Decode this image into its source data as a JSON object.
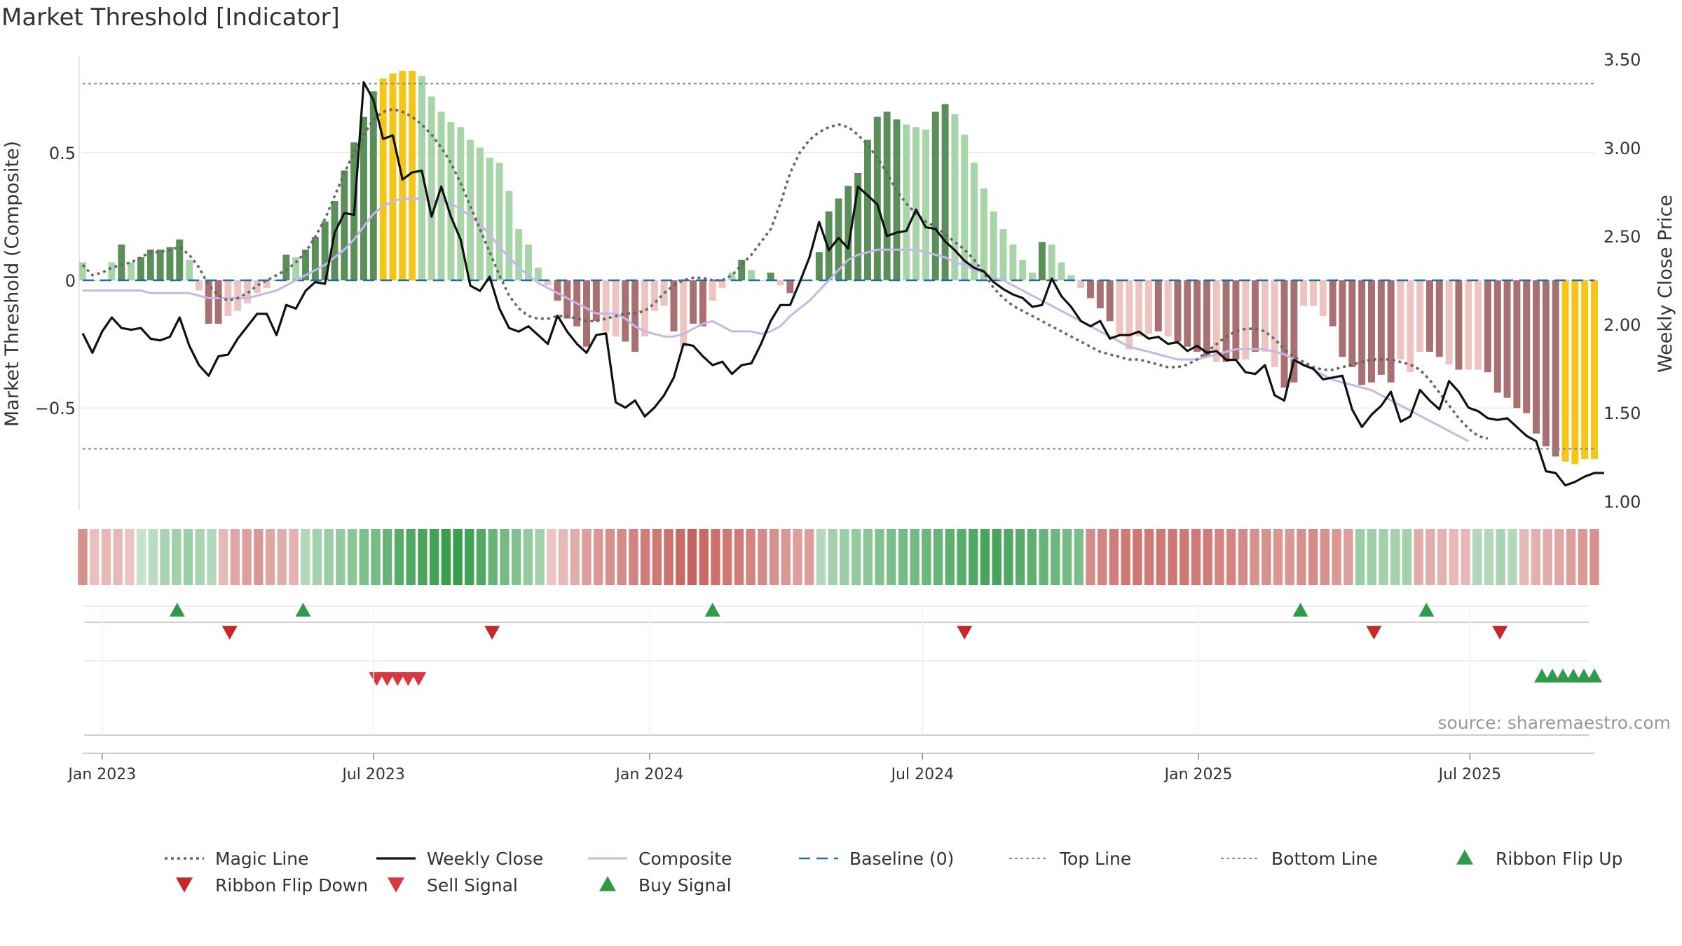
{
  "title": "Market Threshold [Indicator]",
  "source": "source: sharemaestro.com",
  "colors": {
    "bar_pos_strong": "#5a8f5a",
    "bar_pos_weak": "#a8d5a8",
    "bar_neg_strong": "#a87070",
    "bar_neg_weak": "#eec4c0",
    "bar_extreme": "#f5c518",
    "close": "#111111",
    "composite": "#c4b8e8",
    "magic": "#666666",
    "baseline": "#1f6fa6",
    "threshold": "#888888",
    "buy": "#2e9a4a",
    "sell": "#d8373f",
    "ribbon_green": "#3a9e4f",
    "ribbon_red": "#c0504a"
  },
  "chart_data": {
    "type": "bar",
    "title": "Market Threshold [Indicator]",
    "ylabel_left": "Market Threshold (Composite)",
    "ylabel_right": "Weekly Close Price",
    "ylim_left": [
      -0.9,
      0.9
    ],
    "ylim_right": [
      0.95,
      3.55
    ],
    "yticks_left": [
      {
        "v": 0.5,
        "label": "0.5"
      },
      {
        "v": 0,
        "label": "0"
      },
      {
        "v": -0.5,
        "label": "−0.5"
      }
    ],
    "yticks_right": [
      "1.00",
      "1.50",
      "2.00",
      "2.50",
      "3.00",
      "3.50"
    ],
    "top_line": 0.77,
    "bottom_line": -0.66,
    "baseline": 0,
    "x_start": "2022-12-19",
    "x_end": "2025-09-22",
    "xticks": [
      {
        "date": "2023-01-01",
        "label": "Jan 2023"
      },
      {
        "date": "2023-07-01",
        "label": "Jul 2023"
      },
      {
        "date": "2024-01-01",
        "label": "Jan 2024"
      },
      {
        "date": "2024-07-01",
        "label": "Jul 2024"
      },
      {
        "date": "2025-01-01",
        "label": "Jan 2025"
      },
      {
        "date": "2025-07-01",
        "label": "Jul 2025"
      }
    ],
    "composite_bars": [
      0.07,
      0.0,
      0.0,
      0.07,
      0.14,
      0.07,
      0.09,
      0.12,
      0.12,
      0.13,
      0.16,
      0.08,
      -0.04,
      -0.17,
      -0.17,
      -0.14,
      -0.12,
      -0.09,
      -0.05,
      -0.03,
      0.0,
      0.1,
      0.09,
      0.12,
      0.17,
      0.23,
      0.31,
      0.43,
      0.54,
      0.64,
      0.74,
      0.79,
      0.81,
      0.82,
      0.82,
      0.8,
      0.72,
      0.66,
      0.62,
      0.6,
      0.55,
      0.52,
      0.48,
      0.46,
      0.35,
      0.2,
      0.14,
      0.05,
      -0.02,
      -0.08,
      -0.15,
      -0.18,
      -0.26,
      -0.16,
      -0.2,
      -0.22,
      -0.24,
      -0.28,
      -0.22,
      -0.12,
      -0.1,
      -0.2,
      -0.26,
      -0.17,
      -0.18,
      -0.08,
      -0.03,
      0.03,
      0.08,
      0.04,
      0.0,
      0.03,
      -0.02,
      -0.05,
      0.0,
      0.0,
      0.11,
      0.27,
      0.32,
      0.37,
      0.42,
      0.55,
      0.64,
      0.66,
      0.63,
      0.61,
      0.6,
      0.59,
      0.66,
      0.69,
      0.65,
      0.57,
      0.46,
      0.36,
      0.27,
      0.2,
      0.14,
      0.08,
      0.03,
      0.15,
      0.14,
      0.07,
      0.02,
      -0.03,
      -0.07,
      -0.11,
      -0.16,
      -0.21,
      -0.27,
      -0.22,
      -0.21,
      -0.2,
      -0.22,
      -0.24,
      -0.26,
      -0.28,
      -0.3,
      -0.32,
      -0.32,
      -0.31,
      -0.31,
      -0.28,
      -0.28,
      -0.34,
      -0.42,
      -0.4,
      -0.1,
      -0.1,
      -0.14,
      -0.18,
      -0.3,
      -0.34,
      -0.41,
      -0.4,
      -0.37,
      -0.4,
      -0.31,
      -0.36,
      -0.28,
      -0.28,
      -0.3,
      -0.33,
      -0.35,
      -0.35,
      -0.35,
      -0.36,
      -0.44,
      -0.46,
      -0.5,
      -0.52,
      -0.6,
      -0.65,
      -0.69,
      -0.71,
      -0.72,
      -0.7,
      -0.7
    ],
    "bar_styles": [
      "pw",
      "pw",
      "pw",
      "pw",
      "ps",
      "pw",
      "ps",
      "ps",
      "ps",
      "ps",
      "ps",
      "pw",
      "nw",
      "ns",
      "ns",
      "nw",
      "nw",
      "nw",
      "nw",
      "nw",
      "pw",
      "ps",
      "pw",
      "ps",
      "ps",
      "ps",
      "ps",
      "ps",
      "ps",
      "ps",
      "ps",
      "x",
      "x",
      "x",
      "x",
      "pw",
      "pw",
      "pw",
      "pw",
      "pw",
      "pw",
      "pw",
      "pw",
      "pw",
      "pw",
      "pw",
      "pw",
      "pw",
      "nw",
      "ns",
      "ns",
      "ns",
      "ns",
      "ns",
      "nw",
      "nw",
      "ns",
      "ns",
      "nw",
      "nw",
      "nw",
      "ns",
      "nw",
      "ns",
      "ns",
      "nw",
      "nw",
      "pw",
      "ps",
      "pw",
      "pw",
      "ps",
      "nw",
      "ns",
      "pw",
      "pw",
      "ps",
      "ps",
      "ps",
      "ps",
      "ps",
      "ps",
      "ps",
      "ps",
      "ps",
      "pw",
      "pw",
      "pw",
      "ps",
      "ps",
      "pw",
      "pw",
      "pw",
      "pw",
      "pw",
      "pw",
      "pw",
      "pw",
      "pw",
      "ps",
      "pw",
      "pw",
      "pw",
      "nw",
      "ns",
      "ns",
      "ns",
      "nw",
      "nw",
      "nw",
      "nw",
      "ns",
      "nw",
      "ns",
      "ns",
      "ns",
      "ns",
      "nw",
      "ns",
      "ns",
      "nw",
      "ns",
      "nw",
      "nw",
      "ns",
      "ns",
      "nw",
      "nw",
      "nw",
      "ns",
      "ns",
      "ns",
      "ns",
      "ns",
      "ns",
      "ns",
      "nw",
      "nw",
      "nw",
      "ns",
      "ns",
      "nw",
      "ns",
      "nw",
      "nw",
      "ns",
      "ns",
      "ns",
      "ns",
      "ns",
      "ns",
      "ns",
      "ns",
      "x",
      "x",
      "x",
      "x",
      "x",
      "x"
    ],
    "weekly_close": [
      1.95,
      1.84,
      1.96,
      2.04,
      1.98,
      1.97,
      1.98,
      1.92,
      1.91,
      1.93,
      2.04,
      1.88,
      1.77,
      1.71,
      1.82,
      1.83,
      1.92,
      1.99,
      2.06,
      2.06,
      1.94,
      2.11,
      2.09,
      2.19,
      2.24,
      2.23,
      2.52,
      2.63,
      2.62,
      3.37,
      3.27,
      3.05,
      3.07,
      2.82,
      2.86,
      2.87,
      2.61,
      2.78,
      2.61,
      2.48,
      2.22,
      2.19,
      2.27,
      2.09,
      1.98,
      1.96,
      1.99,
      1.94,
      1.89,
      2.05,
      1.96,
      1.89,
      1.84,
      1.94,
      1.95,
      1.56,
      1.53,
      1.57,
      1.48,
      1.53,
      1.6,
      1.7,
      1.89,
      1.88,
      1.82,
      1.77,
      1.79,
      1.72,
      1.77,
      1.78,
      1.89,
      2.02,
      2.11,
      2.11,
      2.24,
      2.38,
      2.58,
      2.42,
      2.49,
      2.43,
      2.78,
      2.73,
      2.68,
      2.5,
      2.52,
      2.53,
      2.65,
      2.55,
      2.54,
      2.47,
      2.42,
      2.36,
      2.32,
      2.3,
      2.24,
      2.2,
      2.17,
      2.15,
      2.1,
      2.11,
      2.26,
      2.16,
      2.1,
      2.02,
      1.99,
      2.02,
      1.92,
      1.94,
      1.94,
      1.96,
      1.92,
      1.93,
      1.89,
      1.9,
      1.85,
      1.88,
      1.84,
      1.85,
      1.8,
      1.8,
      1.73,
      1.72,
      1.77,
      1.6,
      1.57,
      1.8,
      1.77,
      1.75,
      1.69,
      1.7,
      1.71,
      1.52,
      1.42,
      1.49,
      1.54,
      1.62,
      1.45,
      1.48,
      1.63,
      1.57,
      1.52,
      1.68,
      1.62,
      1.53,
      1.51,
      1.47,
      1.46,
      1.47,
      1.42,
      1.37,
      1.34,
      1.17,
      1.16,
      1.09,
      1.11,
      1.14,
      1.16,
      1.16
    ],
    "magic_line": [
      0.06,
      0.02,
      0.03,
      0.05,
      0.06,
      0.07,
      0.09,
      0.11,
      0.11,
      0.12,
      0.13,
      0.1,
      0.05,
      -0.02,
      -0.06,
      -0.08,
      -0.07,
      -0.05,
      -0.02,
      0.0,
      0.02,
      0.04,
      0.07,
      0.11,
      0.17,
      0.24,
      0.33,
      0.42,
      0.5,
      0.57,
      0.63,
      0.66,
      0.67,
      0.66,
      0.64,
      0.61,
      0.57,
      0.52,
      0.46,
      0.38,
      0.29,
      0.2,
      0.11,
      0.02,
      -0.06,
      -0.11,
      -0.14,
      -0.15,
      -0.15,
      -0.14,
      -0.14,
      -0.15,
      -0.16,
      -0.16,
      -0.15,
      -0.14,
      -0.13,
      -0.13,
      -0.12,
      -0.09,
      -0.05,
      -0.02,
      0.0,
      0.01,
      0.01,
      0.0,
      0.0,
      0.02,
      0.06,
      0.1,
      0.15,
      0.2,
      0.3,
      0.42,
      0.5,
      0.55,
      0.58,
      0.6,
      0.61,
      0.6,
      0.57,
      0.53,
      0.48,
      0.42,
      0.35,
      0.3,
      0.26,
      0.23,
      0.21,
      0.18,
      0.15,
      0.12,
      0.08,
      0.03,
      -0.03,
      -0.07,
      -0.1,
      -0.12,
      -0.14,
      -0.16,
      -0.18,
      -0.2,
      -0.22,
      -0.24,
      -0.26,
      -0.28,
      -0.29,
      -0.3,
      -0.31,
      -0.31,
      -0.32,
      -0.33,
      -0.34,
      -0.34,
      -0.33,
      -0.31,
      -0.28,
      -0.25,
      -0.22,
      -0.2,
      -0.19,
      -0.19,
      -0.2,
      -0.23,
      -0.27,
      -0.3,
      -0.32,
      -0.34,
      -0.35,
      -0.35,
      -0.34,
      -0.33,
      -0.32,
      -0.31,
      -0.31,
      -0.31,
      -0.32,
      -0.33,
      -0.35,
      -0.39,
      -0.44,
      -0.49,
      -0.54,
      -0.58,
      -0.61,
      -0.62
    ],
    "composite_line": [
      -0.04,
      -0.04,
      -0.04,
      -0.04,
      -0.04,
      -0.04,
      -0.04,
      -0.05,
      -0.05,
      -0.05,
      -0.05,
      -0.05,
      -0.06,
      -0.07,
      -0.07,
      -0.07,
      -0.07,
      -0.07,
      -0.06,
      -0.05,
      -0.04,
      -0.02,
      0.0,
      0.02,
      0.04,
      0.06,
      0.09,
      0.12,
      0.16,
      0.21,
      0.26,
      0.29,
      0.31,
      0.32,
      0.32,
      0.32,
      0.31,
      0.31,
      0.3,
      0.28,
      0.25,
      0.22,
      0.18,
      0.13,
      0.09,
      0.05,
      0.02,
      -0.01,
      -0.03,
      -0.05,
      -0.07,
      -0.09,
      -0.11,
      -0.13,
      -0.13,
      -0.13,
      -0.15,
      -0.18,
      -0.2,
      -0.21,
      -0.22,
      -0.22,
      -0.21,
      -0.19,
      -0.17,
      -0.16,
      -0.18,
      -0.2,
      -0.2,
      -0.2,
      -0.21,
      -0.2,
      -0.18,
      -0.14,
      -0.11,
      -0.08,
      -0.04,
      0.0,
      0.04,
      0.08,
      0.1,
      0.11,
      0.12,
      0.12,
      0.12,
      0.12,
      0.12,
      0.11,
      0.1,
      0.09,
      0.07,
      0.06,
      0.04,
      0.03,
      0.01,
      0.0,
      -0.02,
      -0.04,
      -0.06,
      -0.08,
      -0.1,
      -0.12,
      -0.14,
      -0.16,
      -0.18,
      -0.2,
      -0.22,
      -0.24,
      -0.26,
      -0.27,
      -0.28,
      -0.29,
      -0.3,
      -0.31,
      -0.31,
      -0.31,
      -0.3,
      -0.29,
      -0.28,
      -0.27,
      -0.27,
      -0.27,
      -0.27,
      -0.28,
      -0.29,
      -0.31,
      -0.33,
      -0.35,
      -0.37,
      -0.39,
      -0.4,
      -0.41,
      -0.42,
      -0.43,
      -0.45,
      -0.47,
      -0.49,
      -0.51,
      -0.53,
      -0.55,
      -0.57,
      -0.59,
      -0.61,
      -0.63
    ],
    "ribbon": [
      -0.5,
      -0.15,
      -0.2,
      -0.2,
      -0.1,
      0.05,
      0.15,
      0.25,
      0.3,
      0.35,
      0.25,
      0.2,
      -0.2,
      -0.35,
      -0.4,
      -0.45,
      -0.35,
      -0.3,
      -0.25,
      0.2,
      0.3,
      0.35,
      0.4,
      0.45,
      0.55,
      0.6,
      0.7,
      0.8,
      0.85,
      0.9,
      0.95,
      1.0,
      1.0,
      0.95,
      0.85,
      0.7,
      0.6,
      0.5,
      0.4,
      0.3,
      -0.1,
      -0.2,
      -0.3,
      -0.4,
      -0.45,
      -0.5,
      -0.55,
      -0.6,
      -0.65,
      -0.7,
      -0.75,
      -0.8,
      -0.85,
      -0.8,
      -0.75,
      -0.7,
      -0.65,
      -0.6,
      -0.55,
      -0.5,
      -0.45,
      -0.4,
      -0.4,
      0.2,
      0.3,
      0.35,
      0.4,
      0.45,
      0.5,
      0.55,
      0.6,
      0.62,
      0.65,
      0.7,
      0.75,
      0.8,
      0.85,
      0.9,
      0.9,
      0.85,
      0.8,
      0.75,
      0.7,
      0.65,
      0.6,
      0.55,
      -0.55,
      -0.6,
      -0.65,
      -0.7,
      -0.7,
      -0.7,
      -0.7,
      -0.7,
      -0.7,
      -0.68,
      -0.65,
      -0.6,
      -0.6,
      -0.55,
      -0.5,
      -0.5,
      -0.45,
      -0.45,
      -0.5,
      -0.55,
      -0.5,
      -0.45,
      -0.4,
      0.35,
      0.35,
      0.3,
      0.3,
      0.3,
      -0.3,
      -0.3,
      -0.25,
      -0.2,
      -0.2,
      0.2,
      0.2,
      0.25,
      0.2,
      -0.2,
      -0.25,
      -0.3,
      -0.35,
      -0.4,
      -0.45,
      -0.5
    ],
    "ribbon_flip_up": [
      "2023-02-20",
      "2023-05-15",
      "2024-02-12",
      "2025-03-10",
      "2025-06-02"
    ],
    "ribbon_flip_down": [
      "2023-03-27",
      "2023-09-18",
      "2024-07-29",
      "2025-04-28",
      "2025-07-21"
    ],
    "sell_signals": [
      "2023-07-03",
      "2023-07-10",
      "2023-07-17",
      "2023-07-24",
      "2023-07-31"
    ],
    "buy_signals": [
      "2025-08-18",
      "2025-08-25",
      "2025-09-01",
      "2025-09-08",
      "2025-09-15",
      "2025-09-22"
    ],
    "legend": [
      {
        "label": "Magic Line",
        "icon": "dotted-line"
      },
      {
        "label": "Weekly Close",
        "icon": "solid-line"
      },
      {
        "label": "Composite",
        "icon": "solid-line-purple"
      },
      {
        "label": "Baseline (0)",
        "icon": "dashed-line"
      },
      {
        "label": "Top Line",
        "icon": "dotted-line-thin"
      },
      {
        "label": "Bottom Line",
        "icon": "dotted-line-thin"
      },
      {
        "label": "Ribbon Flip Up",
        "icon": "triangle-up-green"
      },
      {
        "label": "Ribbon Flip Down",
        "icon": "triangle-down-darkred"
      },
      {
        "label": "Sell Signal",
        "icon": "triangle-down-red"
      },
      {
        "label": "Buy Signal",
        "icon": "triangle-up-green"
      }
    ]
  }
}
